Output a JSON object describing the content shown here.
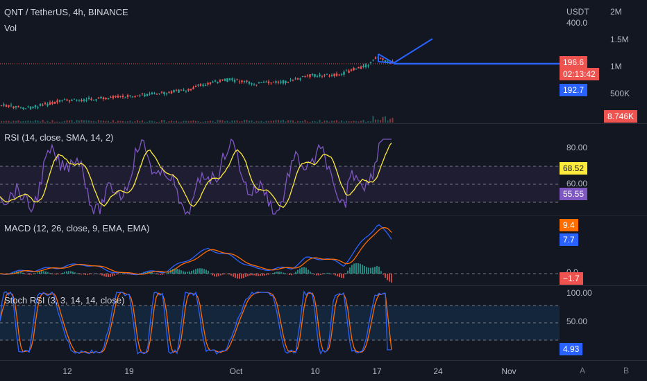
{
  "header": {
    "symbol_line": "QNT / TetherUS, 4h, BINANCE",
    "vol_label": "Vol",
    "currency": "USDT"
  },
  "price_axis": {
    "labels": [
      "400.0",
      "2M",
      "1.5M",
      "1M",
      "500K"
    ]
  },
  "price_tags": {
    "last_price": "196.6",
    "countdown": "02:13:42",
    "line_price": "192.7",
    "volume": "8.746K"
  },
  "rsi": {
    "title": "RSI (14, close, SMA, 14, 2)",
    "axis_labels": [
      "80.00",
      "60.00"
    ],
    "tags": {
      "sma": "68.52",
      "rsi": "55.55"
    }
  },
  "macd": {
    "title": "MACD (12, 26, close, 9, EMA, EMA)",
    "axis_labels": [
      "0.0"
    ],
    "tags": {
      "signal": "9.4",
      "macd": "7.7",
      "hist": "−1.7"
    }
  },
  "stoch": {
    "title": "Stoch RSI (3, 3, 14, 14, close)",
    "axis_labels": [
      "100.00",
      "50.00"
    ],
    "tags": {
      "k": "4.93"
    }
  },
  "time_axis": {
    "labels": [
      "12",
      "19",
      "Oct",
      "10",
      "17",
      "24",
      "Nov"
    ]
  },
  "buttons": {
    "auto": "A",
    "log": "B"
  },
  "colors": {
    "bg": "#131722",
    "up": "#26a69a",
    "down": "#ef5350",
    "blue": "#2962ff",
    "rsi": "#7e57c2",
    "rsi_ma": "#ffeb3b",
    "macd": "#2962ff",
    "signal": "#ff6d00",
    "stoch_k": "#2962ff",
    "stoch_d": "#ff6d00"
  }
}
